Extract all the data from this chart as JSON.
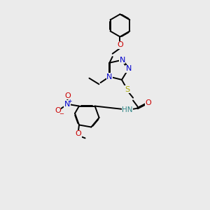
{
  "background_color": "#ebebeb",
  "atom_colors": {
    "C": "#000000",
    "N": "#0000cc",
    "O": "#cc0000",
    "S": "#aaaa00",
    "H": "#338888"
  },
  "bond_color": "#000000",
  "bond_width": 1.4,
  "dbo": 0.06,
  "figsize": [
    3.0,
    3.0
  ],
  "dpi": 100,
  "xlim": [
    0,
    10
  ],
  "ylim": [
    0,
    14
  ]
}
